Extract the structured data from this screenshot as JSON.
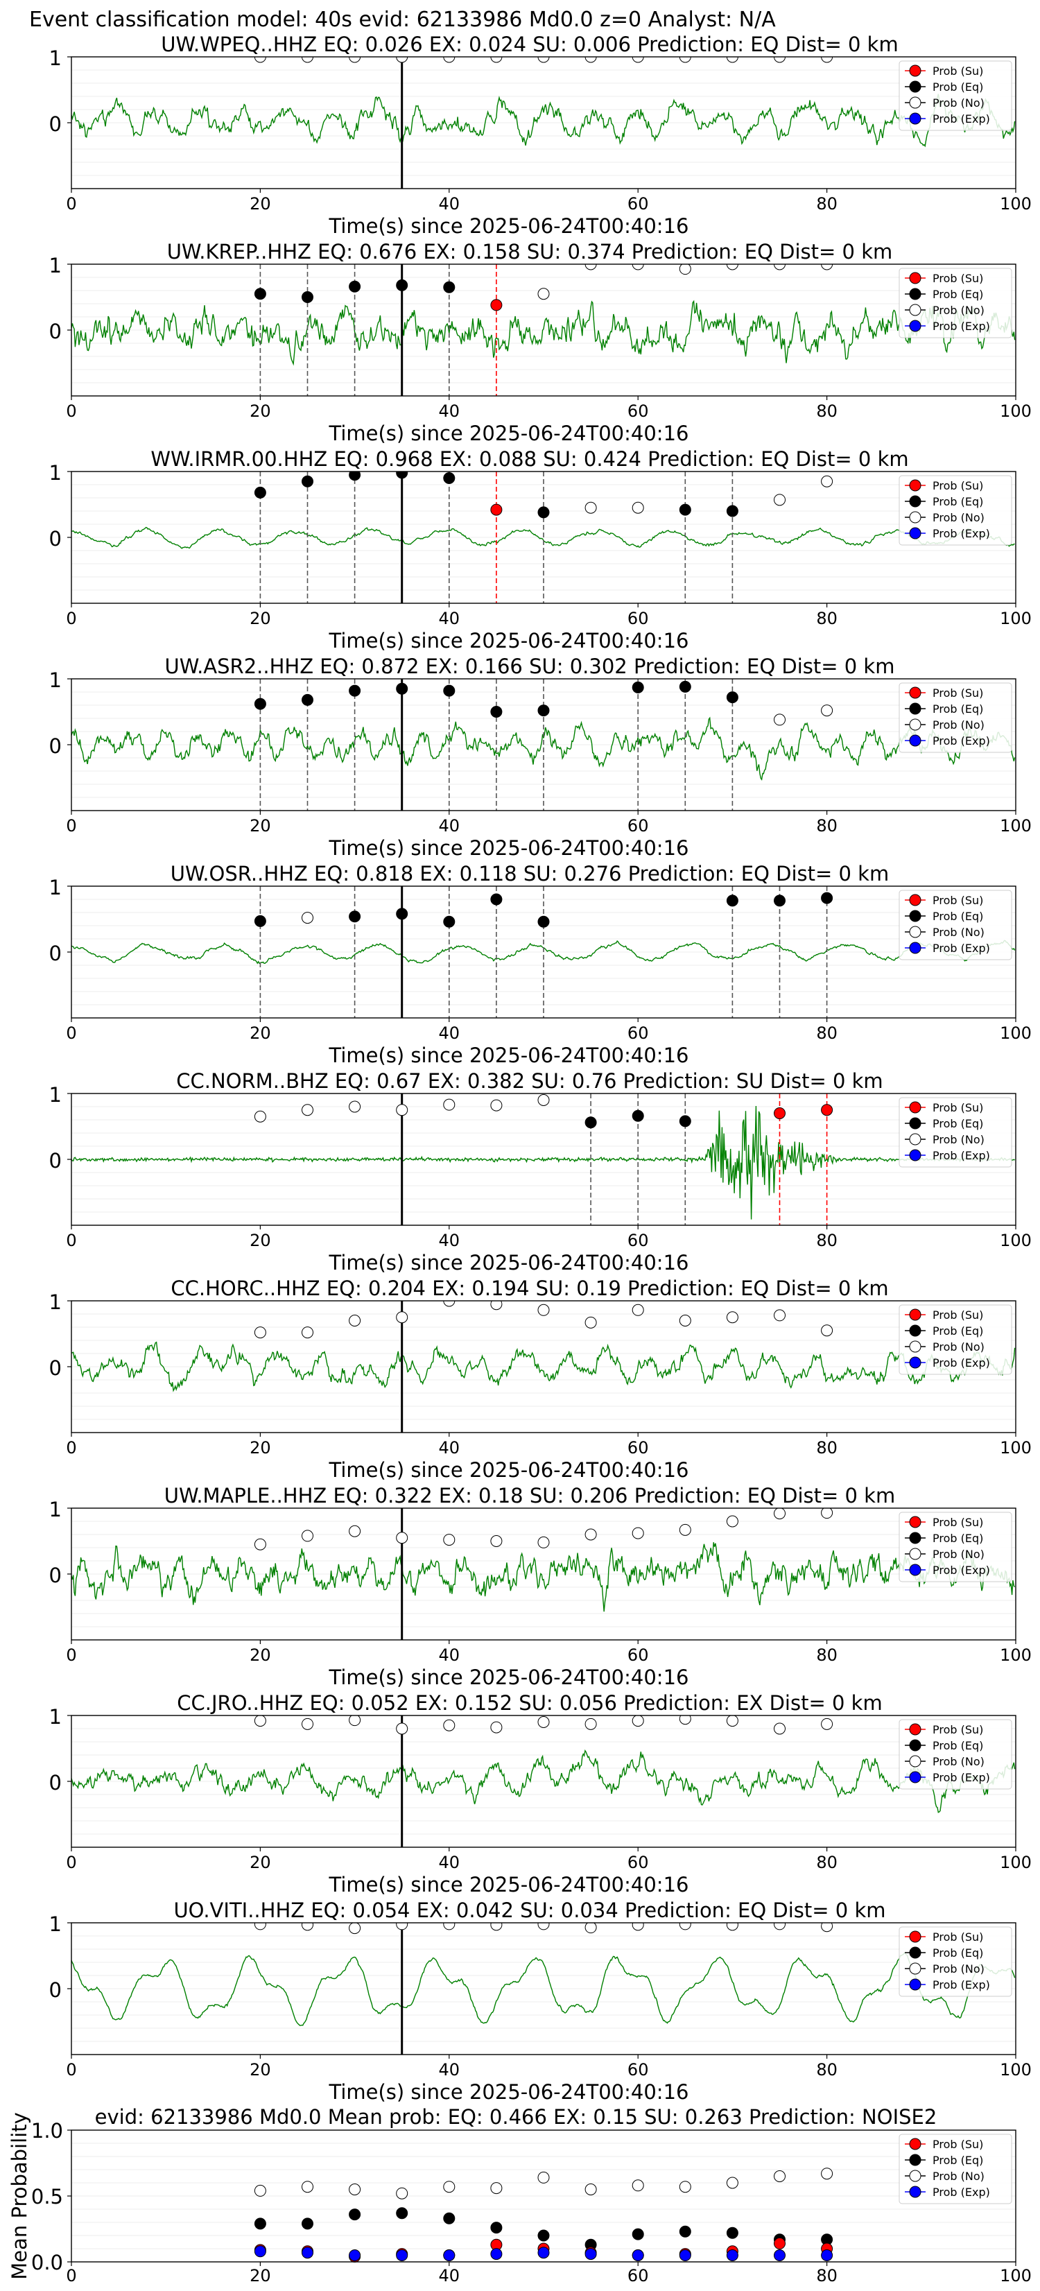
{
  "suptitle": "Event classification model: 40s evid: 62133986 Md0.0 z=0 Analyst: N/A",
  "colors": {
    "trace": "#008000",
    "su": "#ff0000",
    "eq": "#000000",
    "no": "#ffffff",
    "exp": "#0000ff",
    "pick_line": "#000000",
    "eq_vline": "#555555",
    "su_vline": "#ff0000"
  },
  "legend_labels": [
    "Prob (Su)",
    "Prob (Eq)",
    "Prob (No)",
    "Prob (Exp)"
  ],
  "chart_data": [
    {
      "type": "line",
      "title": "UW.WPEQ..HHZ   EQ: 0.026  EX: 0.024  SU: 0.006   Prediction: EQ    Dist= 0 km",
      "xlabel": "Time(s) since 2025-06-24T00:40:16",
      "xlim": [
        0,
        100
      ],
      "ylim": [
        -1,
        1
      ],
      "xticks": [
        "0",
        "20",
        "40",
        "60",
        "80",
        "100"
      ],
      "yticks": [
        "1",
        "0"
      ],
      "pick_time": 35,
      "legend": "top-right",
      "trace_seed": 11,
      "trace_style": "mid",
      "no_points": [
        [
          20,
          1
        ],
        [
          25,
          1
        ],
        [
          30,
          1
        ],
        [
          35,
          1
        ],
        [
          40,
          1
        ],
        [
          45,
          1
        ],
        [
          50,
          1
        ],
        [
          55,
          1
        ],
        [
          60,
          1
        ],
        [
          65,
          1
        ],
        [
          70,
          1
        ],
        [
          75,
          1
        ],
        [
          80,
          1
        ]
      ],
      "eq_points": [],
      "su_points": [],
      "eq_vlines": [],
      "su_vlines": []
    },
    {
      "type": "line",
      "title": "UW.KREP..HHZ   EQ: 0.676  EX: 0.158  SU: 0.374   Prediction: EQ    Dist= 0 km",
      "xlabel": "Time(s) since 2025-06-24T00:40:16",
      "xlim": [
        0,
        100
      ],
      "ylim": [
        -1,
        1
      ],
      "xticks": [
        "0",
        "20",
        "40",
        "60",
        "80",
        "100"
      ],
      "yticks": [
        "1",
        "0"
      ],
      "pick_time": 35,
      "legend": "top-right",
      "trace_seed": 23,
      "trace_style": "noisy",
      "no_points": [
        [
          50,
          0.55
        ],
        [
          55,
          1
        ],
        [
          60,
          1
        ],
        [
          65,
          0.93
        ],
        [
          70,
          1
        ],
        [
          75,
          1
        ],
        [
          80,
          1
        ]
      ],
      "eq_points": [
        [
          20,
          0.55
        ],
        [
          25,
          0.5
        ],
        [
          30,
          0.66
        ],
        [
          35,
          0.68
        ],
        [
          40,
          0.65
        ]
      ],
      "su_points": [
        [
          45,
          0.38
        ]
      ],
      "eq_vlines": [
        20,
        25,
        30,
        40
      ],
      "su_vlines": [
        45
      ]
    },
    {
      "type": "line",
      "title": "WW.IRMR.00.HHZ   EQ: 0.968  EX: 0.088  SU: 0.424   Prediction: EQ    Dist= 0 km",
      "xlabel": "Time(s) since 2025-06-24T00:40:16",
      "xlim": [
        0,
        100
      ],
      "ylim": [
        -1,
        1
      ],
      "xticks": [
        "0",
        "20",
        "40",
        "60",
        "80",
        "100"
      ],
      "yticks": [
        "1",
        "0"
      ],
      "pick_time": 35,
      "legend": "top-right",
      "trace_seed": 37,
      "trace_style": "quiet",
      "no_points": [
        [
          55,
          0.45
        ],
        [
          60,
          0.45
        ],
        [
          75,
          0.57
        ],
        [
          80,
          0.85
        ]
      ],
      "eq_points": [
        [
          20,
          0.68
        ],
        [
          25,
          0.85
        ],
        [
          30,
          0.95
        ],
        [
          35,
          0.98
        ],
        [
          40,
          0.9
        ],
        [
          50,
          0.38
        ],
        [
          65,
          0.42
        ],
        [
          70,
          0.4
        ]
      ],
      "su_points": [
        [
          45,
          0.42
        ]
      ],
      "eq_vlines": [
        20,
        25,
        30,
        40,
        50,
        65,
        70
      ],
      "su_vlines": [
        45
      ]
    },
    {
      "type": "line",
      "title": "UW.ASR2..HHZ   EQ: 0.872  EX: 0.166  SU: 0.302   Prediction: EQ    Dist= 0 km",
      "xlabel": "Time(s) since 2025-06-24T00:40:16",
      "xlim": [
        0,
        100
      ],
      "ylim": [
        -1,
        1
      ],
      "xticks": [
        "0",
        "20",
        "40",
        "60",
        "80",
        "100"
      ],
      "yticks": [
        "1",
        "0"
      ],
      "pick_time": 35,
      "legend": "top-right",
      "trace_seed": 41,
      "trace_style": "mid",
      "no_points": [
        [
          75,
          0.38
        ],
        [
          80,
          0.52
        ]
      ],
      "eq_points": [
        [
          20,
          0.62
        ],
        [
          25,
          0.68
        ],
        [
          30,
          0.82
        ],
        [
          35,
          0.85
        ],
        [
          40,
          0.82
        ],
        [
          45,
          0.5
        ],
        [
          50,
          0.52
        ],
        [
          60,
          0.87
        ],
        [
          65,
          0.88
        ],
        [
          70,
          0.72
        ]
      ],
      "su_points": [],
      "eq_vlines": [
        20,
        25,
        30,
        40,
        45,
        50,
        60,
        65,
        70
      ],
      "su_vlines": []
    },
    {
      "type": "line",
      "title": "UW.OSR..HHZ   EQ: 0.818  EX: 0.118  SU: 0.276   Prediction: EQ    Dist= 0 km",
      "xlabel": "Time(s) since 2025-06-24T00:40:16",
      "xlim": [
        0,
        100
      ],
      "ylim": [
        -1,
        1
      ],
      "xticks": [
        "0",
        "20",
        "40",
        "60",
        "80",
        "100"
      ],
      "yticks": [
        "1",
        "0"
      ],
      "pick_time": 35,
      "legend": "top-right",
      "trace_seed": 53,
      "trace_style": "quiet",
      "no_points": [
        [
          25,
          0.52
        ]
      ],
      "eq_points": [
        [
          20,
          0.47
        ],
        [
          30,
          0.54
        ],
        [
          35,
          0.58
        ],
        [
          40,
          0.46
        ],
        [
          45,
          0.8
        ],
        [
          50,
          0.46
        ],
        [
          70,
          0.78
        ],
        [
          75,
          0.78
        ],
        [
          80,
          0.82
        ]
      ],
      "su_points": [],
      "eq_vlines": [
        20,
        30,
        40,
        45,
        50,
        70,
        75,
        80
      ],
      "su_vlines": []
    },
    {
      "type": "line",
      "title": "CC.NORM..BHZ   EQ: 0.67  EX: 0.382  SU: 0.76   Prediction: SU    Dist= 0 km",
      "xlabel": "Time(s) since 2025-06-24T00:40:16",
      "xlim": [
        0,
        100
      ],
      "ylim": [
        -1,
        1
      ],
      "xticks": [
        "0",
        "20",
        "40",
        "60",
        "80",
        "100"
      ],
      "yticks": [
        "1",
        "0"
      ],
      "pick_time": 35,
      "legend": "top-right",
      "trace_seed": 67,
      "trace_style": "burst",
      "no_points": [
        [
          20,
          0.65
        ],
        [
          25,
          0.75
        ],
        [
          30,
          0.8
        ],
        [
          35,
          0.75
        ],
        [
          40,
          0.83
        ],
        [
          45,
          0.82
        ],
        [
          50,
          0.9
        ]
      ],
      "eq_points": [
        [
          55,
          0.56
        ],
        [
          60,
          0.66
        ],
        [
          65,
          0.58
        ]
      ],
      "su_points": [
        [
          75,
          0.7
        ],
        [
          80,
          0.75
        ]
      ],
      "eq_vlines": [
        55,
        60,
        65
      ],
      "su_vlines": [
        75,
        80
      ]
    },
    {
      "type": "line",
      "title": "CC.HORC..HHZ   EQ: 0.204  EX: 0.194  SU: 0.19   Prediction: EQ    Dist= 0 km",
      "xlabel": "Time(s) since 2025-06-24T00:40:16",
      "xlim": [
        0,
        100
      ],
      "ylim": [
        -1,
        1
      ],
      "xticks": [
        "0",
        "20",
        "40",
        "60",
        "80",
        "100"
      ],
      "yticks": [
        "1",
        "0"
      ],
      "pick_time": 35,
      "legend": "top-right",
      "trace_seed": 71,
      "trace_style": "mid",
      "no_points": [
        [
          20,
          0.52
        ],
        [
          25,
          0.52
        ],
        [
          30,
          0.7
        ],
        [
          35,
          0.75
        ],
        [
          40,
          1
        ],
        [
          45,
          0.95
        ],
        [
          50,
          0.86
        ],
        [
          55,
          0.67
        ],
        [
          60,
          0.86
        ],
        [
          65,
          0.7
        ],
        [
          70,
          0.75
        ],
        [
          75,
          0.78
        ],
        [
          80,
          0.55
        ]
      ],
      "eq_points": [],
      "su_points": [],
      "eq_vlines": [],
      "su_vlines": []
    },
    {
      "type": "line",
      "title": "UW.MAPLE..HHZ   EQ: 0.322  EX: 0.18  SU: 0.206   Prediction: EQ    Dist= 0 km",
      "xlabel": "Time(s) since 2025-06-24T00:40:16",
      "xlim": [
        0,
        100
      ],
      "ylim": [
        -1,
        1
      ],
      "xticks": [
        "0",
        "20",
        "40",
        "60",
        "80",
        "100"
      ],
      "yticks": [
        "1",
        "0"
      ],
      "pick_time": 35,
      "legend": "top-right",
      "trace_seed": 83,
      "trace_style": "noisy",
      "no_points": [
        [
          20,
          0.45
        ],
        [
          25,
          0.58
        ],
        [
          30,
          0.65
        ],
        [
          35,
          0.55
        ],
        [
          40,
          0.52
        ],
        [
          45,
          0.5
        ],
        [
          50,
          0.48
        ],
        [
          55,
          0.6
        ],
        [
          60,
          0.62
        ],
        [
          65,
          0.67
        ],
        [
          70,
          0.8
        ],
        [
          75,
          0.92
        ],
        [
          80,
          0.93
        ]
      ],
      "eq_points": [],
      "su_points": [],
      "eq_vlines": [],
      "su_vlines": []
    },
    {
      "type": "line",
      "title": "CC.JRO..HHZ   EQ: 0.052  EX: 0.152  SU: 0.056   Prediction: EX    Dist= 0 km",
      "xlabel": "Time(s) since 2025-06-24T00:40:16",
      "xlim": [
        0,
        100
      ],
      "ylim": [
        -1,
        1
      ],
      "xticks": [
        "0",
        "20",
        "40",
        "60",
        "80",
        "100"
      ],
      "yticks": [
        "1",
        "0"
      ],
      "pick_time": 35,
      "legend": "top-right",
      "trace_seed": 97,
      "trace_style": "mid",
      "no_points": [
        [
          20,
          0.92
        ],
        [
          25,
          0.87
        ],
        [
          30,
          0.93
        ],
        [
          35,
          0.8
        ],
        [
          40,
          0.85
        ],
        [
          45,
          0.82
        ],
        [
          50,
          0.9
        ],
        [
          55,
          0.87
        ],
        [
          60,
          0.92
        ],
        [
          65,
          0.95
        ],
        [
          70,
          0.92
        ],
        [
          75,
          0.8
        ],
        [
          80,
          0.87
        ]
      ],
      "eq_points": [],
      "su_points": [],
      "eq_vlines": [],
      "su_vlines": []
    },
    {
      "type": "line",
      "title": "UO.VITI..HHZ   EQ: 0.054  EX: 0.042  SU: 0.034   Prediction: EQ    Dist= 0 km",
      "xlabel": "Time(s) since 2025-06-24T00:40:16",
      "xlim": [
        0,
        100
      ],
      "ylim": [
        -1,
        1
      ],
      "xticks": [
        "0",
        "20",
        "40",
        "60",
        "80",
        "100"
      ],
      "yticks": [
        "1",
        "0"
      ],
      "pick_time": 35,
      "legend": "top-right",
      "trace_seed": 101,
      "trace_style": "smooth",
      "no_points": [
        [
          20,
          0.98
        ],
        [
          25,
          0.97
        ],
        [
          30,
          0.92
        ],
        [
          35,
          0.98
        ],
        [
          40,
          0.98
        ],
        [
          45,
          0.97
        ],
        [
          50,
          0.98
        ],
        [
          55,
          0.93
        ],
        [
          60,
          0.97
        ],
        [
          65,
          0.98
        ],
        [
          70,
          0.97
        ],
        [
          75,
          0.98
        ],
        [
          80,
          0.95
        ]
      ],
      "eq_points": [],
      "su_points": [],
      "eq_vlines": [],
      "su_vlines": []
    },
    {
      "type": "scatter",
      "title": "evid: 62133986  Md0.0   Mean prob:   EQ: 0.466  EX: 0.15  SU: 0.263   Prediction: NOISE2",
      "ylabel": "Mean Probability",
      "xlim": [
        0,
        100
      ],
      "ylim": [
        0,
        1
      ],
      "xticks": [
        "0",
        "20",
        "40",
        "60",
        "80",
        "100"
      ],
      "yticks": [
        "0.0",
        "0.5",
        "1.0"
      ],
      "legend": "top-right",
      "series": [
        {
          "name": "Prob (Su)",
          "x": [
            20,
            25,
            30,
            35,
            40,
            45,
            50,
            55,
            60,
            65,
            70,
            75,
            80
          ],
          "y": [
            0.09,
            0.08,
            0.04,
            0.06,
            0.05,
            0.13,
            0.1,
            0.07,
            0.05,
            0.06,
            0.08,
            0.14,
            0.1
          ]
        },
        {
          "name": "Prob (Eq)",
          "x": [
            20,
            25,
            30,
            35,
            40,
            45,
            50,
            55,
            60,
            65,
            70,
            75,
            80
          ],
          "y": [
            0.29,
            0.29,
            0.36,
            0.37,
            0.33,
            0.26,
            0.2,
            0.13,
            0.21,
            0.23,
            0.22,
            0.17,
            0.17
          ]
        },
        {
          "name": "Prob (No)",
          "x": [
            20,
            25,
            30,
            35,
            40,
            45,
            50,
            55,
            60,
            65,
            70,
            75,
            80
          ],
          "y": [
            0.54,
            0.57,
            0.55,
            0.52,
            0.57,
            0.56,
            0.64,
            0.55,
            0.58,
            0.57,
            0.6,
            0.65,
            0.67
          ]
        },
        {
          "name": "Prob (Exp)",
          "x": [
            20,
            25,
            30,
            35,
            40,
            45,
            50,
            55,
            60,
            65,
            70,
            75,
            80
          ],
          "y": [
            0.08,
            0.07,
            0.05,
            0.05,
            0.05,
            0.06,
            0.07,
            0.06,
            0.05,
            0.05,
            0.05,
            0.05,
            0.05
          ]
        }
      ]
    }
  ]
}
